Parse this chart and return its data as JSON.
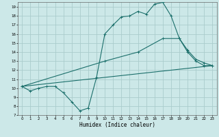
{
  "xlabel": "Humidex (Indice chaleur)",
  "bg_color": "#cce8e8",
  "grid_color": "#aacccc",
  "line_color": "#1a6e6a",
  "xlim": [
    -0.5,
    23.5
  ],
  "ylim": [
    7,
    19.5
  ],
  "yticks": [
    7,
    8,
    9,
    10,
    11,
    12,
    13,
    14,
    15,
    16,
    17,
    18,
    19
  ],
  "xticks": [
    0,
    1,
    2,
    3,
    4,
    5,
    6,
    7,
    8,
    9,
    10,
    11,
    12,
    13,
    14,
    15,
    16,
    17,
    18,
    19,
    20,
    21,
    22,
    23
  ],
  "curve1_x": [
    0,
    1,
    2,
    3,
    4,
    5,
    6,
    7,
    8,
    9,
    10,
    11,
    12,
    13,
    14,
    15,
    16,
    17,
    18,
    19,
    20,
    21,
    22,
    23
  ],
  "curve1_y": [
    10.2,
    9.7,
    10.0,
    10.2,
    10.2,
    9.5,
    8.5,
    7.5,
    7.8,
    11.2,
    16.0,
    17.0,
    17.9,
    18.0,
    18.5,
    18.2,
    19.3,
    19.5,
    18.0,
    15.5,
    14.0,
    13.0,
    12.5,
    12.5
  ],
  "curve2_x": [
    0,
    10,
    14,
    17,
    19,
    20,
    21,
    22,
    23
  ],
  "curve2_y": [
    10.2,
    13.0,
    14.0,
    15.5,
    15.5,
    14.2,
    13.2,
    12.8,
    12.5
  ],
  "curve3_x": [
    0,
    23
  ],
  "curve3_y": [
    10.2,
    12.5
  ]
}
